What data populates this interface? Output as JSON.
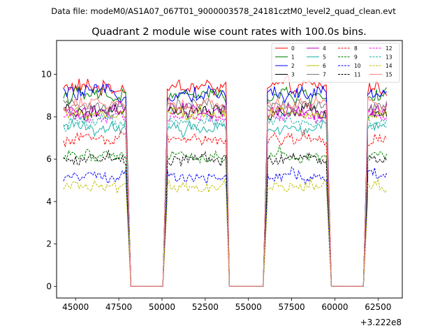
{
  "chart_data": {
    "type": "line",
    "suptitle": "Data file: modeM0/AS1A07_067T01_9000003578_24181cztM0_level2_quad_clean.evt",
    "title": "Quadrant 2 module wise count rates with 100.0s bins.",
    "xlabel": "",
    "ylabel": "",
    "x_offset_label": "+3.222e8",
    "xlim": [
      43900,
      63900
    ],
    "ylim": [
      -0.55,
      11.6
    ],
    "xticks": [
      45000,
      47500,
      50000,
      52500,
      55000,
      57500,
      60000,
      62500
    ],
    "xtick_labels": [
      "45000",
      "47500",
      "50000",
      "52500",
      "55000",
      "57500",
      "60000",
      "62500"
    ],
    "yticks": [
      0,
      2,
      4,
      6,
      8,
      10
    ],
    "ytick_labels": [
      "0",
      "2",
      "4",
      "6",
      "8",
      "10"
    ],
    "grid": false,
    "legend_location": "upper right",
    "legend_columns": 4,
    "gaps": [
      {
        "fall": [
          47950,
          48200
        ],
        "zero": [
          48200,
          50050
        ],
        "rise": [
          50050,
          50300
        ]
      },
      {
        "fall": [
          53700,
          53900
        ],
        "zero": [
          53900,
          55850
        ],
        "rise": [
          55850,
          56100
        ]
      },
      {
        "fall": [
          59550,
          59800
        ],
        "zero": [
          59800,
          61650
        ],
        "rise": [
          61650,
          61900
        ]
      }
    ],
    "good_intervals": [
      [
        44300,
        47900
      ],
      [
        50300,
        53700
      ],
      [
        56100,
        59500
      ],
      [
        61900,
        63000
      ]
    ],
    "series": [
      {
        "name": "0",
        "color": "#ff0000",
        "style": "solid",
        "level": 9.4,
        "noise": 0.4
      },
      {
        "name": "1",
        "color": "#008000",
        "style": "solid",
        "level": 9.0,
        "noise": 0.38
      },
      {
        "name": "2",
        "color": "#0000ff",
        "style": "solid",
        "level": 9.1,
        "noise": 0.38
      },
      {
        "name": "3",
        "color": "#000000",
        "style": "solid",
        "level": 8.2,
        "noise": 0.35
      },
      {
        "name": "4",
        "color": "#bf00bf",
        "style": "solid",
        "level": 8.3,
        "noise": 0.38
      },
      {
        "name": "5",
        "color": "#20b2aa",
        "style": "solid",
        "level": 7.5,
        "noise": 0.35
      },
      {
        "name": "6",
        "color": "#bfbf00",
        "style": "solid",
        "level": 8.1,
        "noise": 0.35
      },
      {
        "name": "7",
        "color": "#7a7a7a",
        "style": "solid",
        "level": 8.5,
        "noise": 0.35
      },
      {
        "name": "8",
        "color": "#ff0000",
        "style": "dashed",
        "level": 7.0,
        "noise": 0.35
      },
      {
        "name": "9",
        "color": "#008000",
        "style": "dashed",
        "level": 6.2,
        "noise": 0.32
      },
      {
        "name": "10",
        "color": "#0000ff",
        "style": "dashed",
        "level": 5.2,
        "noise": 0.3
      },
      {
        "name": "11",
        "color": "#000000",
        "style": "dashed",
        "level": 6.0,
        "noise": 0.32
      },
      {
        "name": "12",
        "color": "#ff00ff",
        "style": "dashed",
        "level": 8.0,
        "noise": 0.35
      },
      {
        "name": "13",
        "color": "#20b2aa",
        "style": "dashed",
        "level": 7.7,
        "noise": 0.35
      },
      {
        "name": "14",
        "color": "#bfbf00",
        "style": "dashed",
        "level": 4.7,
        "noise": 0.3
      },
      {
        "name": "15",
        "color": "#ff8080",
        "style": "solid",
        "level": 8.6,
        "noise": 0.35
      }
    ]
  }
}
